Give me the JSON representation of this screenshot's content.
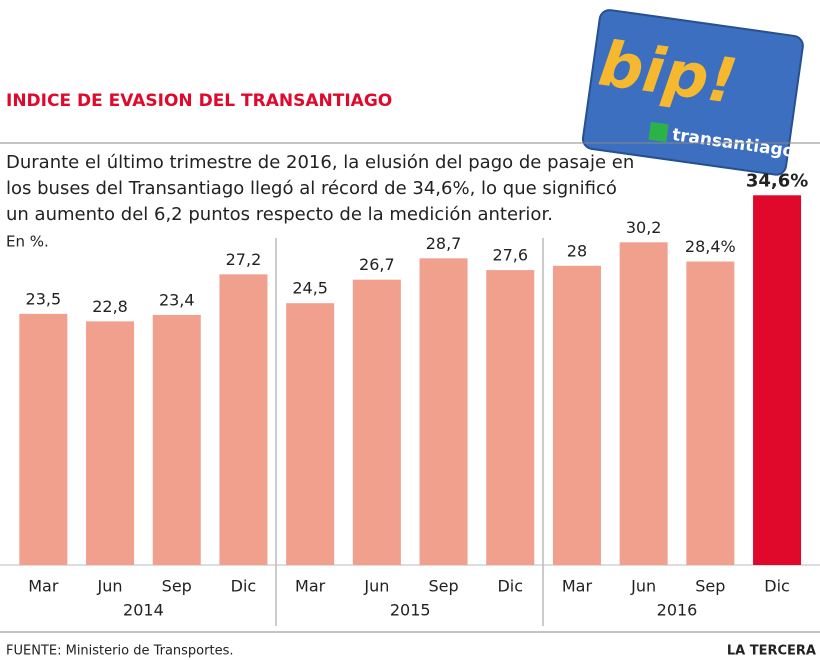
{
  "chart_data": {
    "type": "bar",
    "title": "INDICE DE EVASION DEL TRANSANTIAGO",
    "subtitle": [
      "Durante el último trimestre de 2016, la elusión del pago de pasaje en",
      "los buses del Transantiago  llegó al récord de 34,6%, lo que significó",
      "un aumento del 6,2 puntos respecto de la medición anterior."
    ],
    "unit_label": "En %.",
    "categories": [
      "Mar",
      "Jun",
      "Sep",
      "Dic",
      "Mar",
      "Jun",
      "Sep",
      "Dic",
      "Mar",
      "Jun",
      "Sep",
      "Dic"
    ],
    "years": [
      "2014",
      "2015",
      "2016"
    ],
    "values": [
      23.5,
      22.8,
      23.4,
      27.2,
      24.5,
      26.7,
      28.7,
      27.6,
      28,
      30.2,
      28.4,
      34.6
    ],
    "value_labels": [
      "23,5",
      "22,8",
      "23,4",
      "27,2",
      "24,5",
      "26,7",
      "28,7",
      "27,6",
      "28",
      "30,2",
      "28,4%",
      "34,6%"
    ],
    "colors": [
      "#f0a08c",
      "#f0a08c",
      "#f0a08c",
      "#f0a08c",
      "#f0a08c",
      "#f0a08c",
      "#f0a08c",
      "#f0a08c",
      "#f0a08c",
      "#f0a08c",
      "#f0a08c",
      "#e0082b"
    ],
    "ylim": [
      0,
      35
    ],
    "source": "FUENTE: Ministerio de Transportes.",
    "brand": "LA TERCERA",
    "card": {
      "logo": "bip!",
      "name": "transantiago"
    }
  }
}
